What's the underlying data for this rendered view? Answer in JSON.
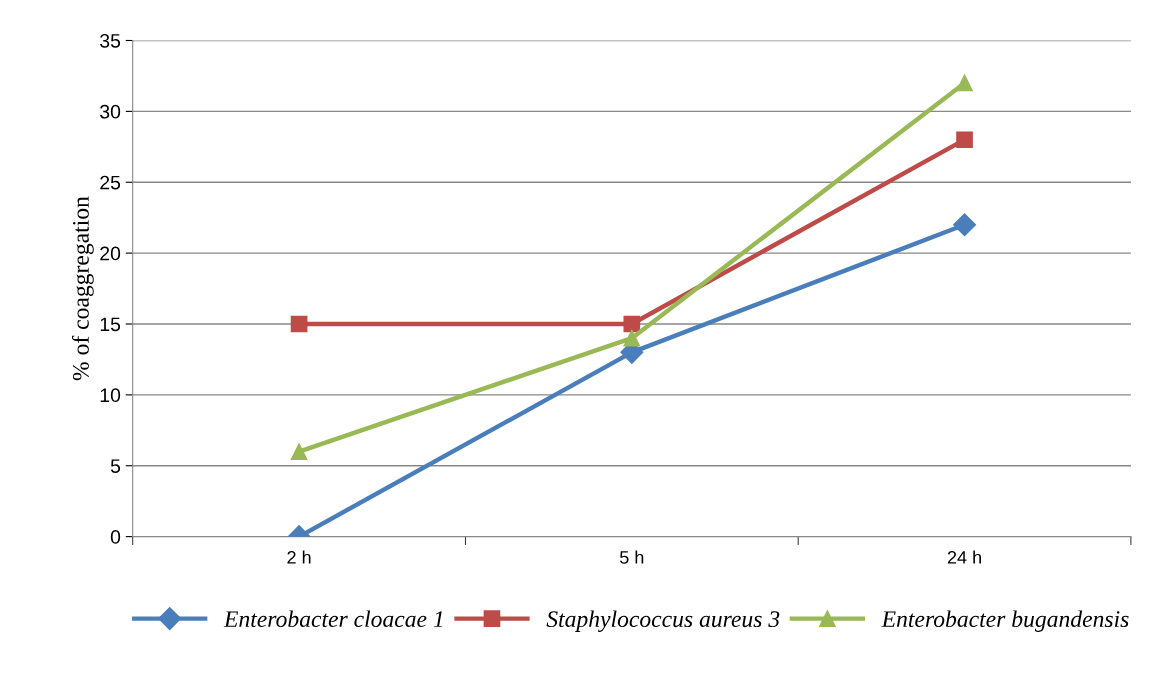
{
  "chart_data": {
    "type": "line",
    "ylabel": "% of coaggregation",
    "categories": [
      "2 h",
      "5 h",
      "24 h"
    ],
    "series": [
      {
        "name": "Enterobacter cloacae 1",
        "color": "#4a7ebb",
        "marker": "diamond",
        "values": [
          0,
          13,
          22
        ]
      },
      {
        "name": "Staphylococcus aureus 3",
        "color": "#be4b48",
        "marker": "square",
        "values": [
          15,
          15,
          28
        ]
      },
      {
        "name": "Enterobacter bugandensis",
        "color": "#98b954",
        "marker": "triangle",
        "values": [
          6,
          14,
          32
        ]
      }
    ],
    "ylim": [
      0,
      35
    ],
    "yticks": [
      0,
      5,
      10,
      15,
      20,
      25,
      30,
      35
    ],
    "grid": "y",
    "legend": "bottom",
    "line_style": "solid"
  }
}
